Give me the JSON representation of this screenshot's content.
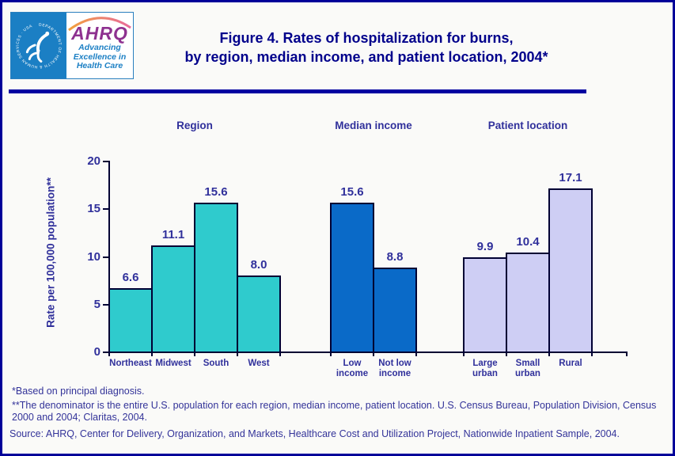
{
  "header": {
    "logo": {
      "acronym": "AHRQ",
      "tagline": [
        "Advancing",
        "Excellence in",
        "Health Care"
      ],
      "seal_text": "DEPARTMENT OF HEALTH & HUMAN SERVICES · USA"
    },
    "title_line1": "Figure 4. Rates of hospitalization for burns,",
    "title_line2": "by region, median income, and patient location, 2004*"
  },
  "chart_data": {
    "type": "bar",
    "title": "Figure 4. Rates of hospitalization for burns, by region, median income, and patient location, 2004",
    "xlabel": "",
    "ylabel": "Rate per 100,000 population**",
    "ylim": [
      0,
      20
    ],
    "yticks": [
      0,
      5,
      10,
      15,
      20
    ],
    "grid": false,
    "legend": false,
    "groups": [
      {
        "label": "Region",
        "bar_color": "#2FCBCD",
        "bars": [
          {
            "label": "Northeast",
            "label_lines": [
              "Northeast"
            ],
            "value": 6.6,
            "value_label": "6.6"
          },
          {
            "label": "Midwest",
            "label_lines": [
              "Midwest"
            ],
            "value": 11.1,
            "value_label": "11.1"
          },
          {
            "label": "South",
            "label_lines": [
              "South"
            ],
            "value": 15.6,
            "value_label": "15.6"
          },
          {
            "label": "West",
            "label_lines": [
              "West"
            ],
            "value": 8.0,
            "value_label": "8.0"
          }
        ]
      },
      {
        "label": "Median income",
        "bar_color": "#0A6AC8",
        "bars": [
          {
            "label": "Low income",
            "label_lines": [
              "Low",
              "income"
            ],
            "value": 15.6,
            "value_label": "15.6"
          },
          {
            "label": "Not low income",
            "label_lines": [
              "Not low",
              "income"
            ],
            "value": 8.8,
            "value_label": "8.8"
          }
        ]
      },
      {
        "label": "Patient location",
        "bar_color": "#CECEF4",
        "bars": [
          {
            "label": "Large urban",
            "label_lines": [
              "Large",
              "urban"
            ],
            "value": 9.9,
            "value_label": "9.9"
          },
          {
            "label": "Small urban",
            "label_lines": [
              "Small",
              "urban"
            ],
            "value": 10.4,
            "value_label": "10.4"
          },
          {
            "label": "Rural",
            "label_lines": [
              "Rural"
            ],
            "value": 17.1,
            "value_label": "17.1"
          }
        ]
      }
    ]
  },
  "footnotes": [
    "*Based on principal diagnosis.",
    "**The denominator is the entire U.S. population for each region, median income, patient location. U.S. Census Bureau, Population Division, Census 2000 and 2004; Claritas, 2004."
  ],
  "source": "Source: AHRQ, Center for Delivery, Organization, and Markets, Healthcare Cost and Utilization Project, Nationwide Inpatient Sample, 2004.",
  "colors": {
    "page_border": "#000099",
    "divider": "#0000A1",
    "title_text": "#00008B",
    "chart_text": "#30309B",
    "axis": "#000033",
    "footnote_text": "#333399",
    "logo_blue": "#1B7FC4",
    "logo_purple": "#8E3190"
  }
}
